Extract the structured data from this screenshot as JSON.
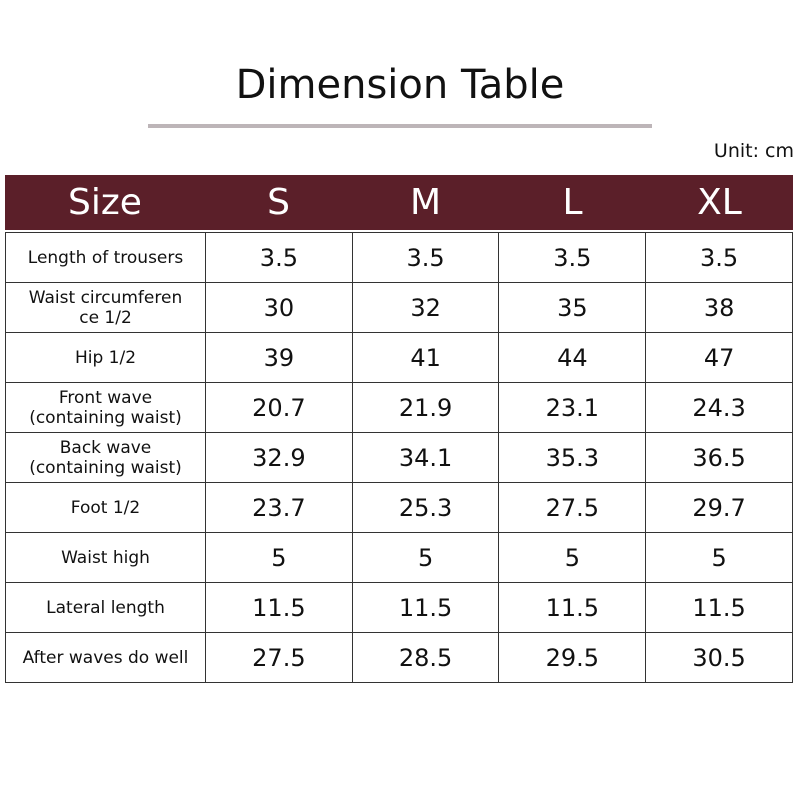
{
  "header": {
    "title": "Dimension Table",
    "unit": "Unit: cm"
  },
  "table": {
    "columns": [
      "Size",
      "S",
      "M",
      "L",
      "XL"
    ],
    "rows": [
      [
        "Length of trousers",
        "3.5",
        "3.5",
        "3.5",
        "3.5"
      ],
      [
        "Waist circumferen\nce 1/2",
        "30",
        "32",
        "35",
        "38"
      ],
      [
        "Hip 1/2",
        "39",
        "41",
        "44",
        "47"
      ],
      [
        "Front wave\n(containing waist)",
        "20.7",
        "21.9",
        "23.1",
        "24.3"
      ],
      [
        "Back wave\n(containing waist)",
        "32.9",
        "34.1",
        "35.3",
        "36.5"
      ],
      [
        "Foot 1/2",
        "23.7",
        "25.3",
        "27.5",
        "29.7"
      ],
      [
        "Waist high",
        "5",
        "5",
        "5",
        "5"
      ],
      [
        "Lateral length",
        "11.5",
        "11.5",
        "11.5",
        "11.5"
      ],
      [
        "After waves do well",
        "27.5",
        "28.5",
        "29.5",
        "30.5"
      ]
    ]
  }
}
